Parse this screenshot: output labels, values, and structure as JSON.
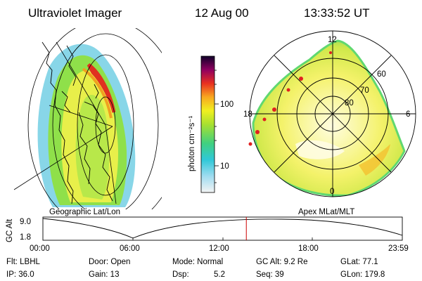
{
  "header": {
    "instrument": "Ultraviolet Imager",
    "date": "12 Aug 00",
    "time": "13:33:52 UT"
  },
  "geo_panel": {
    "label": "Geographic Lat/Lon"
  },
  "colorbar": {
    "unit_label": "photon cm⁻²s⁻¹",
    "ticks": [
      "100",
      "10"
    ]
  },
  "polar_panel": {
    "label": "Apex MLat/MLT",
    "mlt_labels": {
      "top": "12",
      "left": "18",
      "right": "6",
      "bottom": "0"
    },
    "lat_labels": [
      "60",
      "70",
      "80"
    ]
  },
  "orbit_plot": {
    "ylabel": "GC Alt",
    "y_ticks": [
      "9.0",
      "1.8"
    ],
    "x_ticks": [
      "00:00",
      "06:00",
      "12:00",
      "18:00",
      "23:59"
    ],
    "marker_fraction": 0.566
  },
  "info": {
    "filter": "Flt: LBHL",
    "door": "Door: Open",
    "mode": "Mode: Normal",
    "gc_alt": "GC Alt: 9.2 Re",
    "glat": "GLat: 77.1",
    "ip": "IP: 36.0",
    "gain": "Gain: 13",
    "dsp_label": "Dsp:",
    "dsp_value": "5.2",
    "seq": "Seq: 39",
    "glon": "GLon: 179.8"
  },
  "colors": {
    "marker": "#cc0000",
    "border": "#000000"
  }
}
